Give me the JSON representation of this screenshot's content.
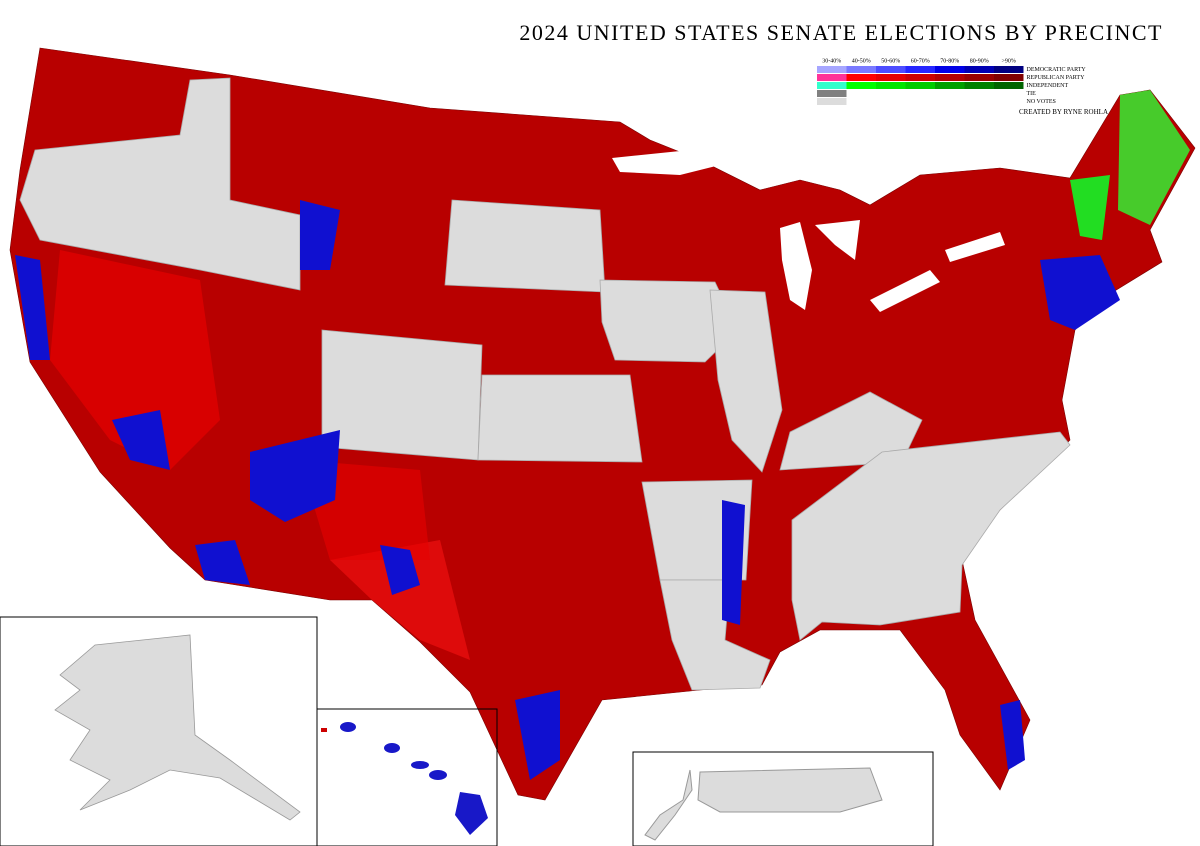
{
  "title": "2024 UNITED STATES SENATE ELECTIONS BY PRECINCT",
  "credit": "CREATED BY RYNE ROHLA",
  "legend": {
    "columns": [
      "30-40%",
      "40-50%",
      "50-60%",
      "60-70%",
      "70-80%",
      "80-90%",
      ">90%"
    ],
    "rows": [
      {
        "label": "DEMOCRATIC PARTY",
        "colors": [
          "#a6a6ff",
          "#7a7aff",
          "#4d4dff",
          "#2626ff",
          "#0000e6",
          "#0000b3",
          "#000080"
        ]
      },
      {
        "label": "REPUBLICAN PARTY",
        "colors": [
          "#ff3399",
          "#ff0000",
          "#e60000",
          "#cc0000",
          "#b30000",
          "#990000",
          "#800000"
        ]
      },
      {
        "label": "INDEPENDENT",
        "colors": [
          "#33ffcc",
          "#00ff00",
          "#00e600",
          "#00cc00",
          "#00a000",
          "#008000",
          "#006400"
        ]
      },
      {
        "label": "TIE",
        "colors": [
          "#808080"
        ]
      },
      {
        "label": "NO VOTES",
        "colors": [
          "#dcdcdc"
        ]
      }
    ]
  }
}
